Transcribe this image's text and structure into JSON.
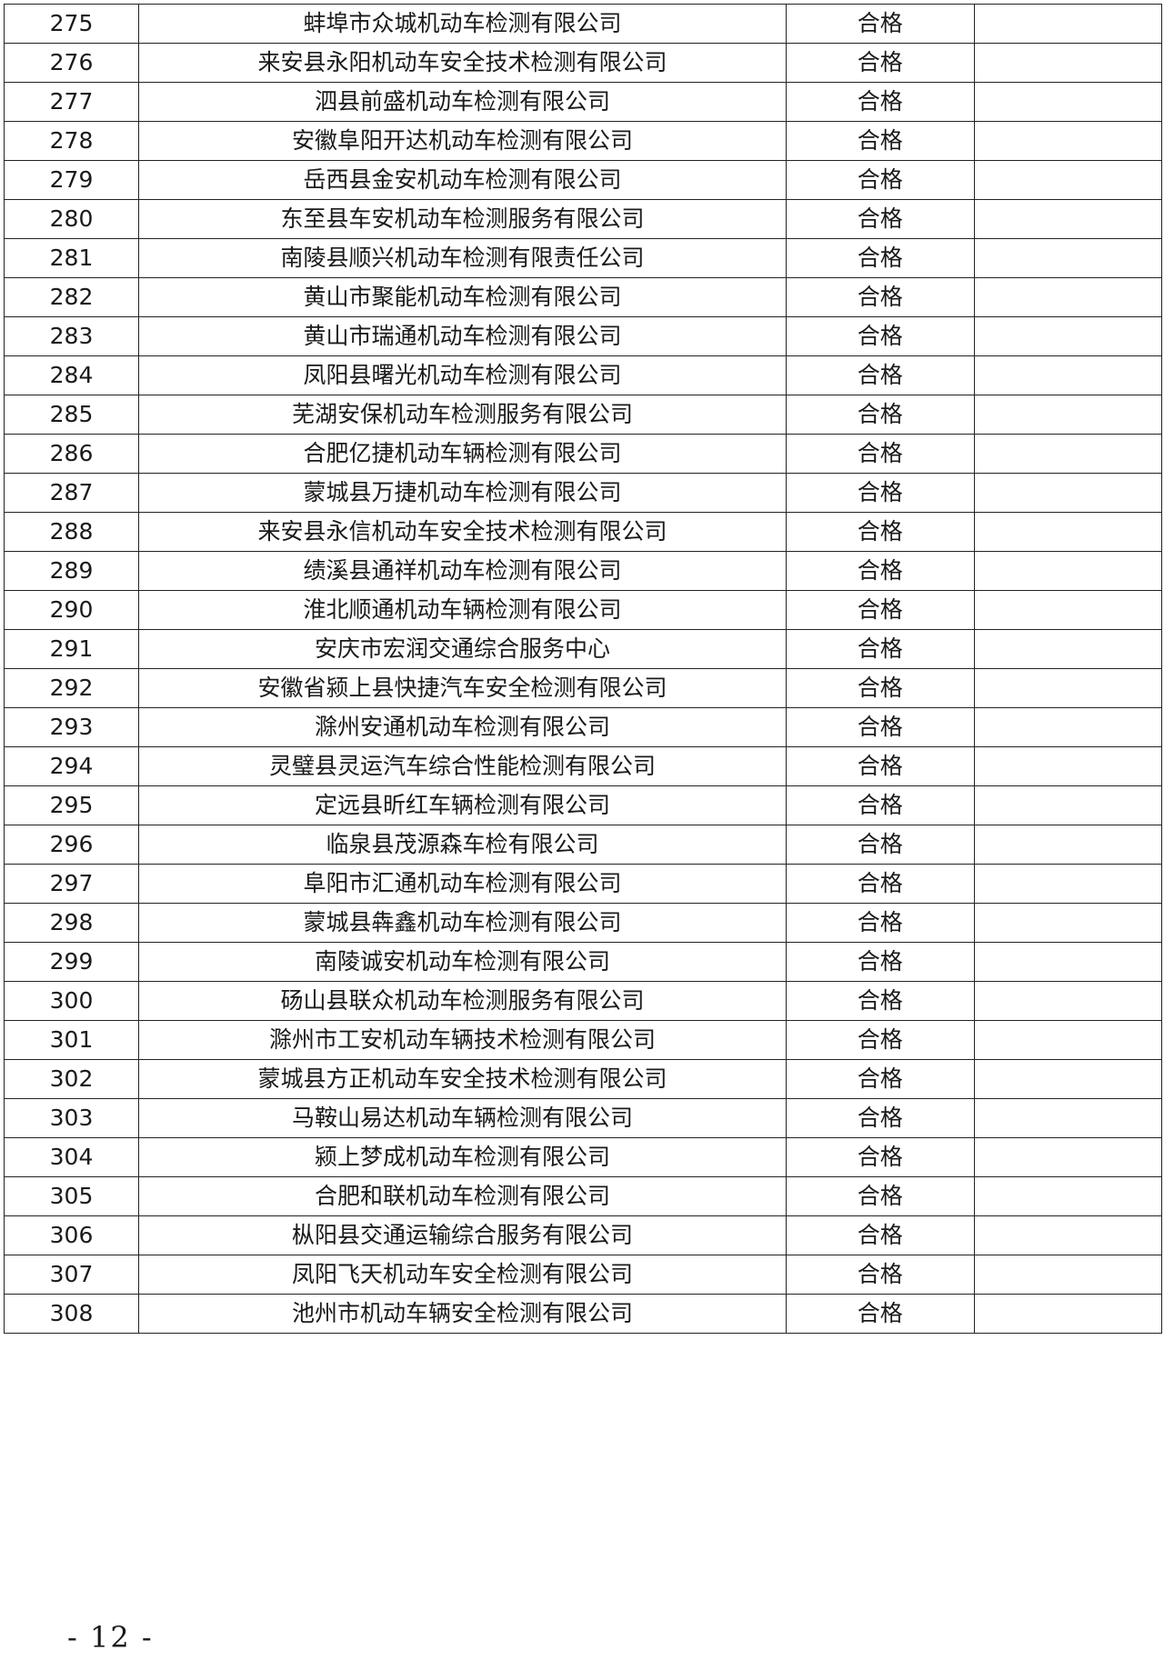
{
  "table": {
    "rows": [
      {
        "no": "275",
        "name": "蚌埠市众城机动车检测有限公司",
        "result": "合格",
        "note": ""
      },
      {
        "no": "276",
        "name": "来安县永阳机动车安全技术检测有限公司",
        "result": "合格",
        "note": ""
      },
      {
        "no": "277",
        "name": "泗县前盛机动车检测有限公司",
        "result": "合格",
        "note": ""
      },
      {
        "no": "278",
        "name": "安徽阜阳开达机动车检测有限公司",
        "result": "合格",
        "note": ""
      },
      {
        "no": "279",
        "name": "岳西县金安机动车检测有限公司",
        "result": "合格",
        "note": ""
      },
      {
        "no": "280",
        "name": "东至县车安机动车检测服务有限公司",
        "result": "合格",
        "note": ""
      },
      {
        "no": "281",
        "name": "南陵县顺兴机动车检测有限责任公司",
        "result": "合格",
        "note": ""
      },
      {
        "no": "282",
        "name": "黄山市聚能机动车检测有限公司",
        "result": "合格",
        "note": ""
      },
      {
        "no": "283",
        "name": "黄山市瑞通机动车检测有限公司",
        "result": "合格",
        "note": ""
      },
      {
        "no": "284",
        "name": "凤阳县曙光机动车检测有限公司",
        "result": "合格",
        "note": ""
      },
      {
        "no": "285",
        "name": "芜湖安保机动车检测服务有限公司",
        "result": "合格",
        "note": ""
      },
      {
        "no": "286",
        "name": "合肥亿捷机动车辆检测有限公司",
        "result": "合格",
        "note": ""
      },
      {
        "no": "287",
        "name": "蒙城县万捷机动车检测有限公司",
        "result": "合格",
        "note": ""
      },
      {
        "no": "288",
        "name": "来安县永信机动车安全技术检测有限公司",
        "result": "合格",
        "note": ""
      },
      {
        "no": "289",
        "name": "绩溪县通祥机动车检测有限公司",
        "result": "合格",
        "note": ""
      },
      {
        "no": "290",
        "name": "淮北顺通机动车辆检测有限公司",
        "result": "合格",
        "note": ""
      },
      {
        "no": "291",
        "name": "安庆市宏润交通综合服务中心",
        "result": "合格",
        "note": ""
      },
      {
        "no": "292",
        "name": "安徽省颍上县快捷汽车安全检测有限公司",
        "result": "合格",
        "note": ""
      },
      {
        "no": "293",
        "name": "滁州安通机动车检测有限公司",
        "result": "合格",
        "note": ""
      },
      {
        "no": "294",
        "name": "灵璧县灵运汽车综合性能检测有限公司",
        "result": "合格",
        "note": ""
      },
      {
        "no": "295",
        "name": "定远县昕红车辆检测有限公司",
        "result": "合格",
        "note": ""
      },
      {
        "no": "296",
        "name": "临泉县茂源森车检有限公司",
        "result": "合格",
        "note": ""
      },
      {
        "no": "297",
        "name": "阜阳市汇通机动车检测有限公司",
        "result": "合格",
        "note": ""
      },
      {
        "no": "298",
        "name": "蒙城县犇鑫机动车检测有限公司",
        "result": "合格",
        "note": ""
      },
      {
        "no": "299",
        "name": "南陵诚安机动车检测有限公司",
        "result": "合格",
        "note": ""
      },
      {
        "no": "300",
        "name": "砀山县联众机动车检测服务有限公司",
        "result": "合格",
        "note": ""
      },
      {
        "no": "301",
        "name": "滁州市工安机动车辆技术检测有限公司",
        "result": "合格",
        "note": ""
      },
      {
        "no": "302",
        "name": "蒙城县方正机动车安全技术检测有限公司",
        "result": "合格",
        "note": ""
      },
      {
        "no": "303",
        "name": "马鞍山易达机动车辆检测有限公司",
        "result": "合格",
        "note": ""
      },
      {
        "no": "304",
        "name": "颍上梦成机动车检测有限公司",
        "result": "合格",
        "note": ""
      },
      {
        "no": "305",
        "name": "合肥和联机动车检测有限公司",
        "result": "合格",
        "note": ""
      },
      {
        "no": "306",
        "name": "枞阳县交通运输综合服务有限公司",
        "result": "合格",
        "note": ""
      },
      {
        "no": "307",
        "name": "凤阳飞天机动车安全检测有限公司",
        "result": "合格",
        "note": ""
      },
      {
        "no": "308",
        "name": "池州市机动车辆安全检测有限公司",
        "result": "合格",
        "note": ""
      }
    ]
  },
  "footer": {
    "page_number": "- 12 -"
  }
}
